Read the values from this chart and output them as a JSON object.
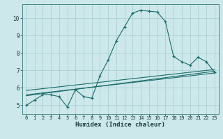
{
  "xlabel": "Humidex (Indice chaleur)",
  "ylabel": "",
  "bg_color": "#cce8ea",
  "grid_color": "#aed0d3",
  "line_color": "#1a6b6b",
  "xlim": [
    -0.5,
    23.5
  ],
  "ylim": [
    4.5,
    10.8
  ],
  "x_ticks": [
    0,
    1,
    2,
    3,
    4,
    5,
    6,
    7,
    8,
    9,
    10,
    11,
    12,
    13,
    14,
    15,
    16,
    17,
    18,
    19,
    20,
    21,
    22,
    23
  ],
  "y_ticks": [
    5,
    6,
    7,
    8,
    9,
    10
  ],
  "main_x": [
    0,
    1,
    2,
    3,
    4,
    5,
    6,
    7,
    8,
    9,
    10,
    11,
    12,
    13,
    14,
    15,
    16,
    17,
    18,
    19,
    20,
    21,
    22,
    23
  ],
  "main_y": [
    5.0,
    5.3,
    5.6,
    5.6,
    5.5,
    4.9,
    5.9,
    5.5,
    5.4,
    6.7,
    7.6,
    8.7,
    9.5,
    10.3,
    10.45,
    10.4,
    10.35,
    9.8,
    7.8,
    7.5,
    7.3,
    7.75,
    7.5,
    6.9
  ],
  "trend1_x": [
    0,
    23
  ],
  "trend1_y": [
    5.85,
    7.05
  ],
  "trend2_x": [
    0,
    23
  ],
  "trend2_y": [
    5.6,
    6.85
  ],
  "trend3_x": [
    0,
    23
  ],
  "trend3_y": [
    5.55,
    6.95
  ]
}
